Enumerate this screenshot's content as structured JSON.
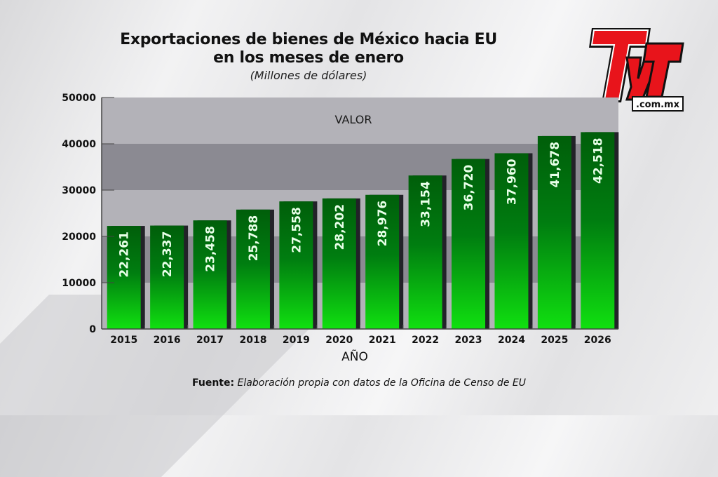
{
  "header": {
    "title_line1": "Exportaciones de bienes de México hacia EU",
    "title_line2": "en los meses de enero",
    "subtitle": "(Millones de dólares)"
  },
  "logo": {
    "text": "TyT",
    "domain": ".com.mx",
    "color": "#e8141b"
  },
  "footer": {
    "source_label": "Fuente:",
    "source_text": "Elaboración propia con datos de la Oficina de Censo de EU"
  },
  "colors": {
    "bar_top": "#005e0a",
    "bar_bottom": "#10e010",
    "band_light": "#b3b2b8",
    "band_dark": "#8b8a92"
  },
  "chart_data": {
    "type": "bar",
    "title": "Exportaciones de bienes de México hacia EU en los meses de enero",
    "subtitle": "(Millones de dólares)",
    "xlabel": "AÑO",
    "ylabel": "",
    "series_label": "VALOR",
    "categories": [
      "2015",
      "2016",
      "2017",
      "2018",
      "2019",
      "2020",
      "2021",
      "2022",
      "2023",
      "2024",
      "2025",
      "2026"
    ],
    "values": [
      22261,
      22337,
      23458,
      25788,
      27558,
      28202,
      28976,
      33154,
      36720,
      37960,
      41678,
      42518
    ],
    "data_labels": [
      "22,261",
      "22,337",
      "23,458",
      "25,788",
      "27,558",
      "28,202",
      "28,976",
      "33,154",
      "36,720",
      "37,960",
      "41,678",
      "42,518"
    ],
    "ylim": [
      0,
      50000
    ],
    "yticks": [
      0,
      10000,
      20000,
      30000,
      40000,
      50000
    ],
    "ytick_labels": [
      "0",
      "10000",
      "20000",
      "30000",
      "40000",
      "50000"
    ],
    "grid": "alternating horizontal bands",
    "legend": "none"
  }
}
